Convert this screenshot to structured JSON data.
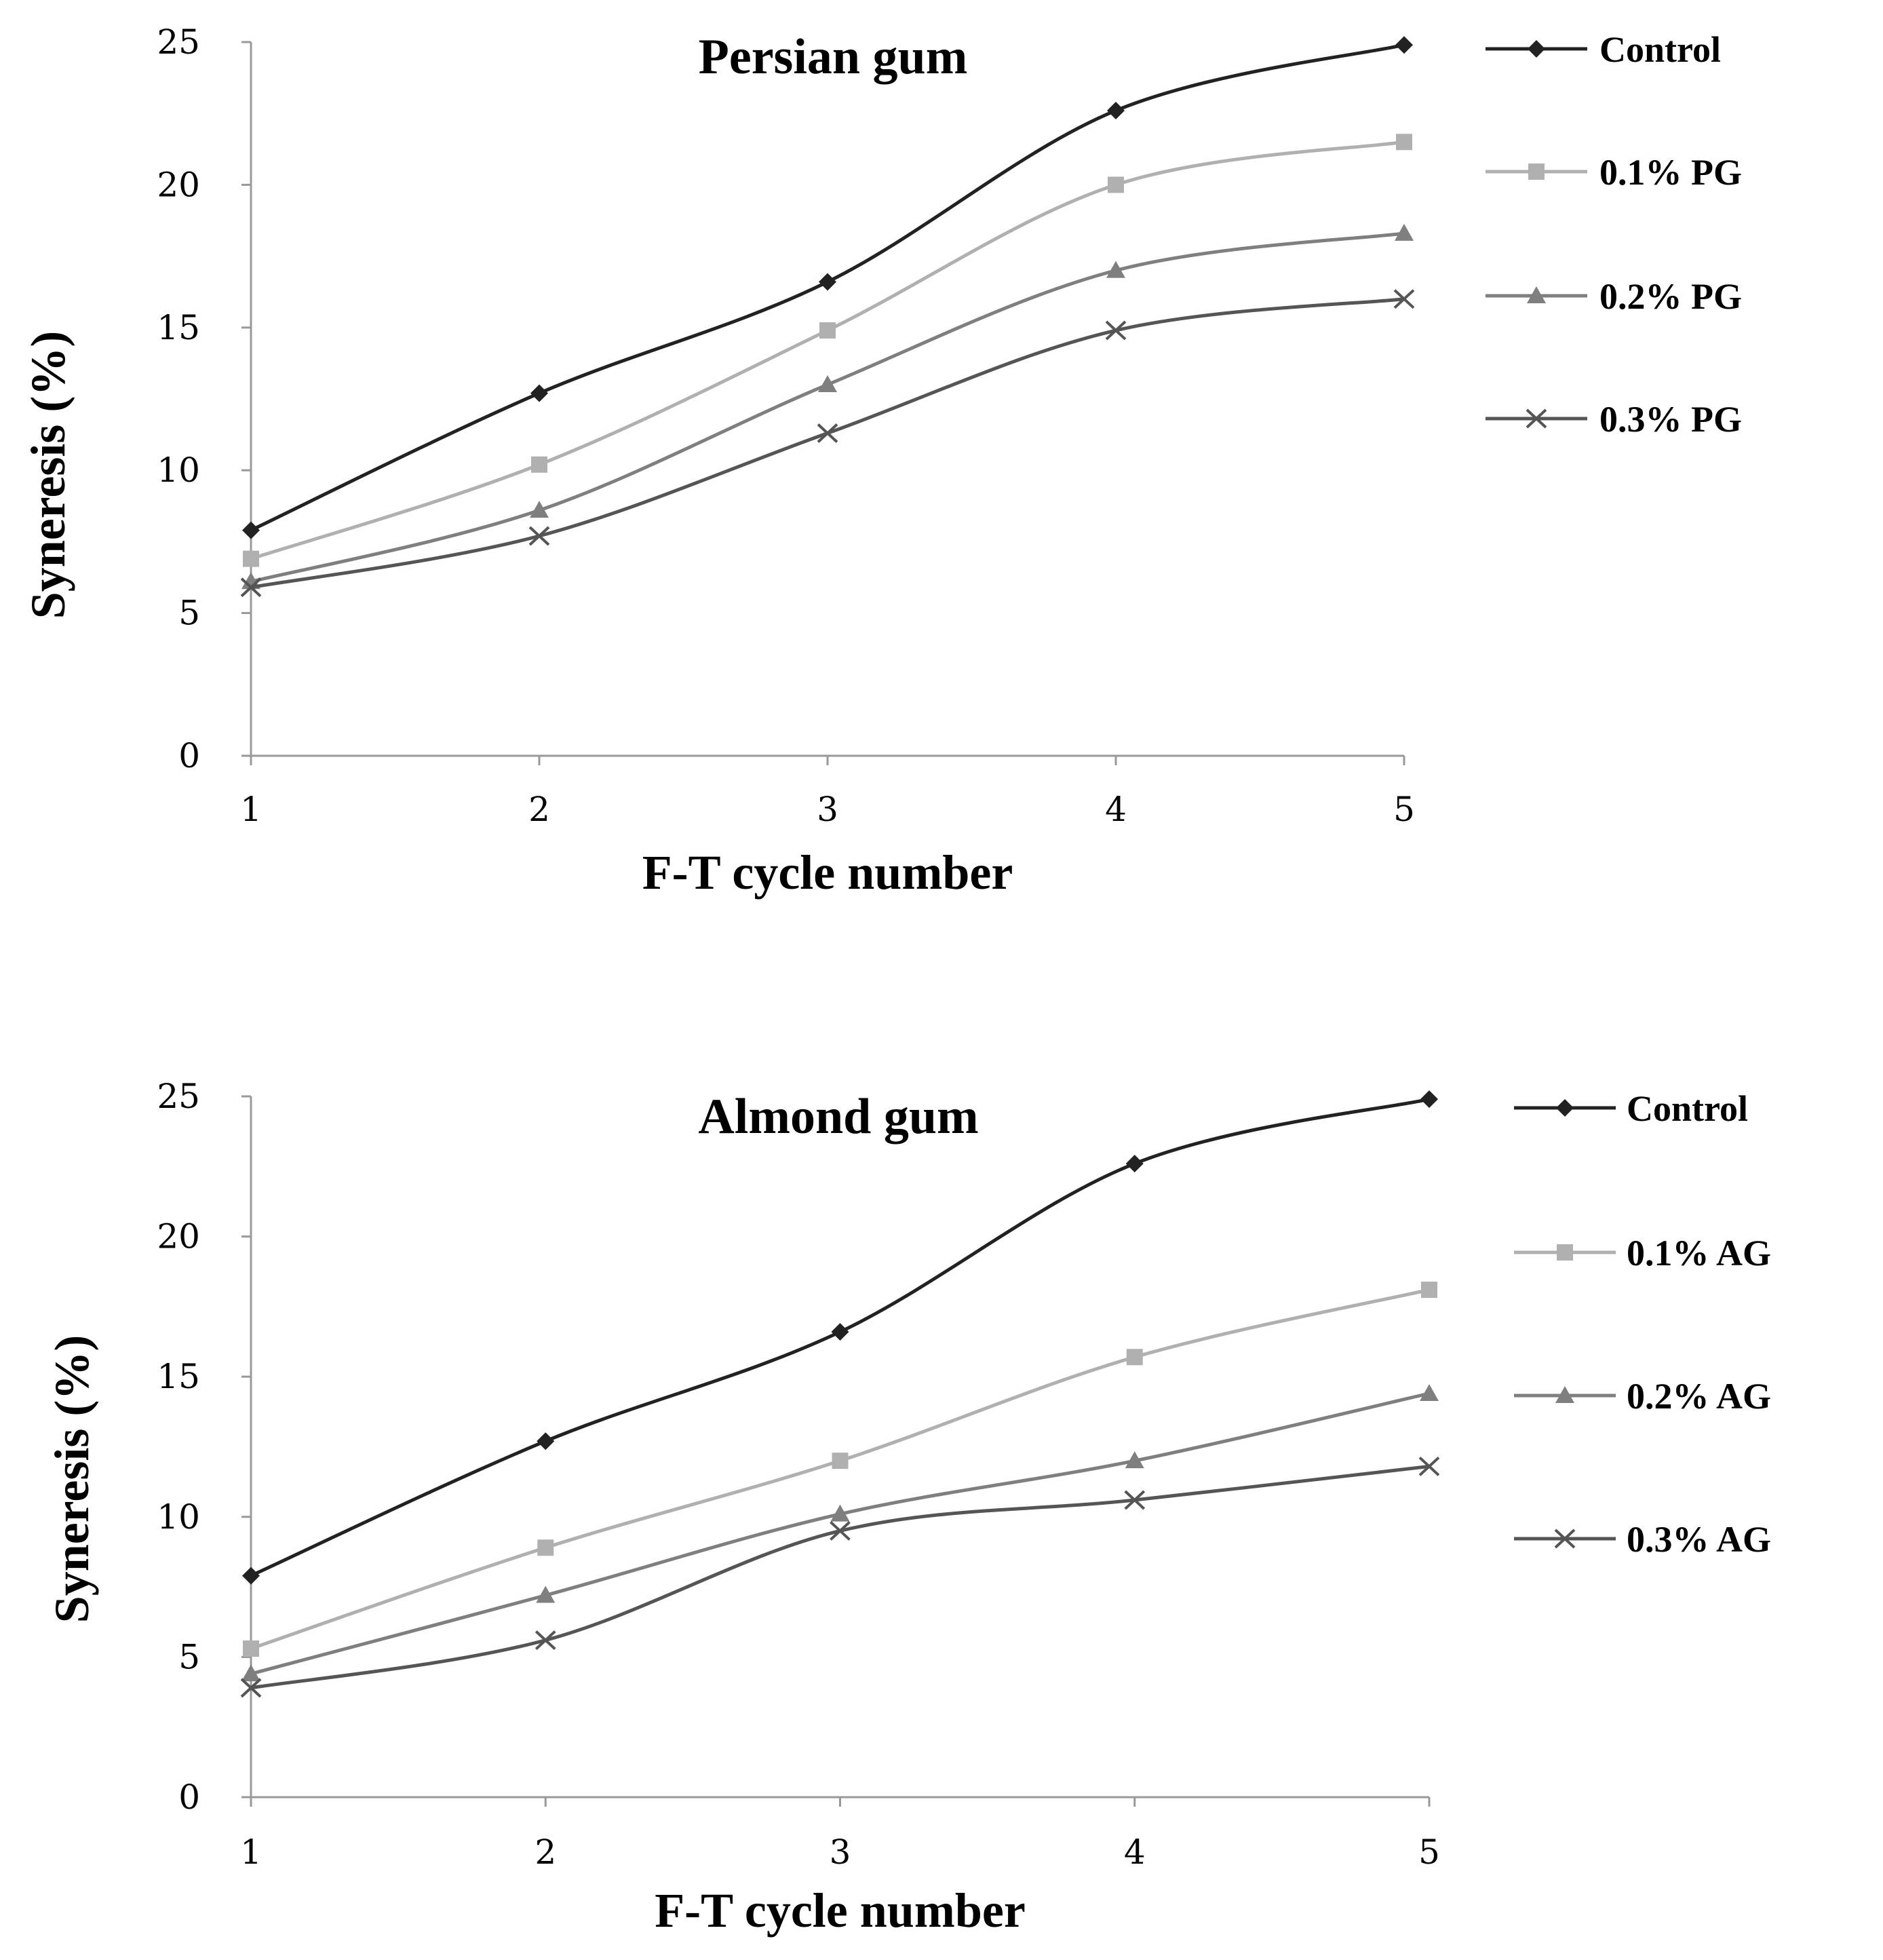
{
  "chart_data": [
    {
      "type": "line",
      "title": "Persian gum",
      "xlabel": "F-T cycle number",
      "ylabel": "Syneresis (%)",
      "x": [
        1,
        2,
        3,
        4,
        5
      ],
      "xticks": [
        "1",
        "2",
        "3",
        "4",
        "5"
      ],
      "yticks": [
        "0",
        "5",
        "10",
        "15",
        "20",
        "25"
      ],
      "ylim": [
        0,
        25
      ],
      "grid": false,
      "legend_position": "right",
      "series": [
        {
          "name": "Control",
          "marker": "diamond",
          "color": "#222222",
          "values": [
            7.9,
            12.7,
            16.6,
            22.6,
            24.9
          ]
        },
        {
          "name": "0.1% PG",
          "marker": "square",
          "color": "#b0b0b0",
          "values": [
            6.9,
            10.2,
            14.9,
            20.0,
            21.5
          ]
        },
        {
          "name": "0.2% PG",
          "marker": "triangle",
          "color": "#7f7f7f",
          "values": [
            6.1,
            8.6,
            13.0,
            17.0,
            18.3
          ]
        },
        {
          "name": "0.3% PG",
          "marker": "x",
          "color": "#555555",
          "values": [
            5.9,
            7.7,
            11.3,
            14.9,
            16.0
          ]
        }
      ]
    },
    {
      "type": "line",
      "title": "Almond gum",
      "xlabel": "F-T cycle number",
      "ylabel": "Syneresis (%)",
      "x": [
        1,
        2,
        3,
        4,
        5
      ],
      "xticks": [
        "1",
        "2",
        "3",
        "4",
        "5"
      ],
      "yticks": [
        "0",
        "5",
        "10",
        "15",
        "20",
        "25"
      ],
      "ylim": [
        0,
        25
      ],
      "grid": false,
      "legend_position": "right",
      "series": [
        {
          "name": "Control",
          "marker": "diamond",
          "color": "#222222",
          "values": [
            7.9,
            12.7,
            16.6,
            22.6,
            24.9
          ]
        },
        {
          "name": "0.1% AG",
          "marker": "square",
          "color": "#b0b0b0",
          "values": [
            5.3,
            8.9,
            12.0,
            15.7,
            18.1
          ]
        },
        {
          "name": "0.2% AG",
          "marker": "triangle",
          "color": "#7f7f7f",
          "values": [
            4.4,
            7.2,
            10.1,
            12.0,
            14.4
          ]
        },
        {
          "name": "0.3% AG",
          "marker": "x",
          "color": "#555555",
          "values": [
            3.9,
            5.6,
            9.5,
            10.6,
            11.8
          ]
        }
      ]
    }
  ]
}
